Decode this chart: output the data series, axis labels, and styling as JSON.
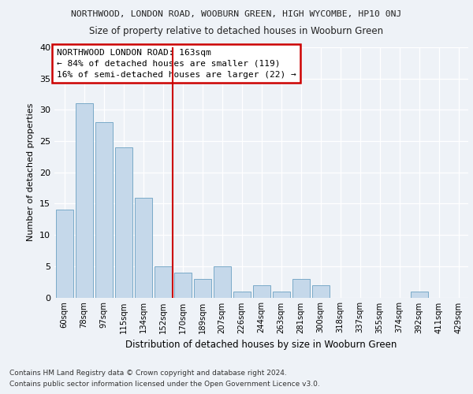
{
  "title_line1": "NORTHWOOD, LONDON ROAD, WOOBURN GREEN, HIGH WYCOMBE, HP10 0NJ",
  "title_line2": "Size of property relative to detached houses in Wooburn Green",
  "xlabel": "Distribution of detached houses by size in Wooburn Green",
  "ylabel": "Number of detached properties",
  "categories": [
    "60sqm",
    "78sqm",
    "97sqm",
    "115sqm",
    "134sqm",
    "152sqm",
    "170sqm",
    "189sqm",
    "207sqm",
    "226sqm",
    "244sqm",
    "263sqm",
    "281sqm",
    "300sqm",
    "318sqm",
    "337sqm",
    "355sqm",
    "374sqm",
    "392sqm",
    "411sqm",
    "429sqm"
  ],
  "values": [
    14,
    31,
    28,
    24,
    16,
    5,
    4,
    3,
    5,
    1,
    2,
    1,
    3,
    2,
    0,
    0,
    0,
    0,
    1,
    0,
    0
  ],
  "bar_color": "#c5d8ea",
  "bar_edge_color": "#7aaac8",
  "vline_x": 5.5,
  "vline_color": "#cc0000",
  "annotation_title": "NORTHWOOD LONDON ROAD: 163sqm",
  "annotation_line2": "← 84% of detached houses are smaller (119)",
  "annotation_line3": "16% of semi-detached houses are larger (22) →",
  "annotation_box_color": "#ffffff",
  "annotation_box_edge_color": "#cc0000",
  "ylim": [
    0,
    40
  ],
  "yticks": [
    0,
    5,
    10,
    15,
    20,
    25,
    30,
    35,
    40
  ],
  "footnote1": "Contains HM Land Registry data © Crown copyright and database right 2024.",
  "footnote2": "Contains public sector information licensed under the Open Government Licence v3.0.",
  "background_color": "#eef2f7",
  "plot_background": "#eef2f7",
  "grid_color": "#ffffff"
}
